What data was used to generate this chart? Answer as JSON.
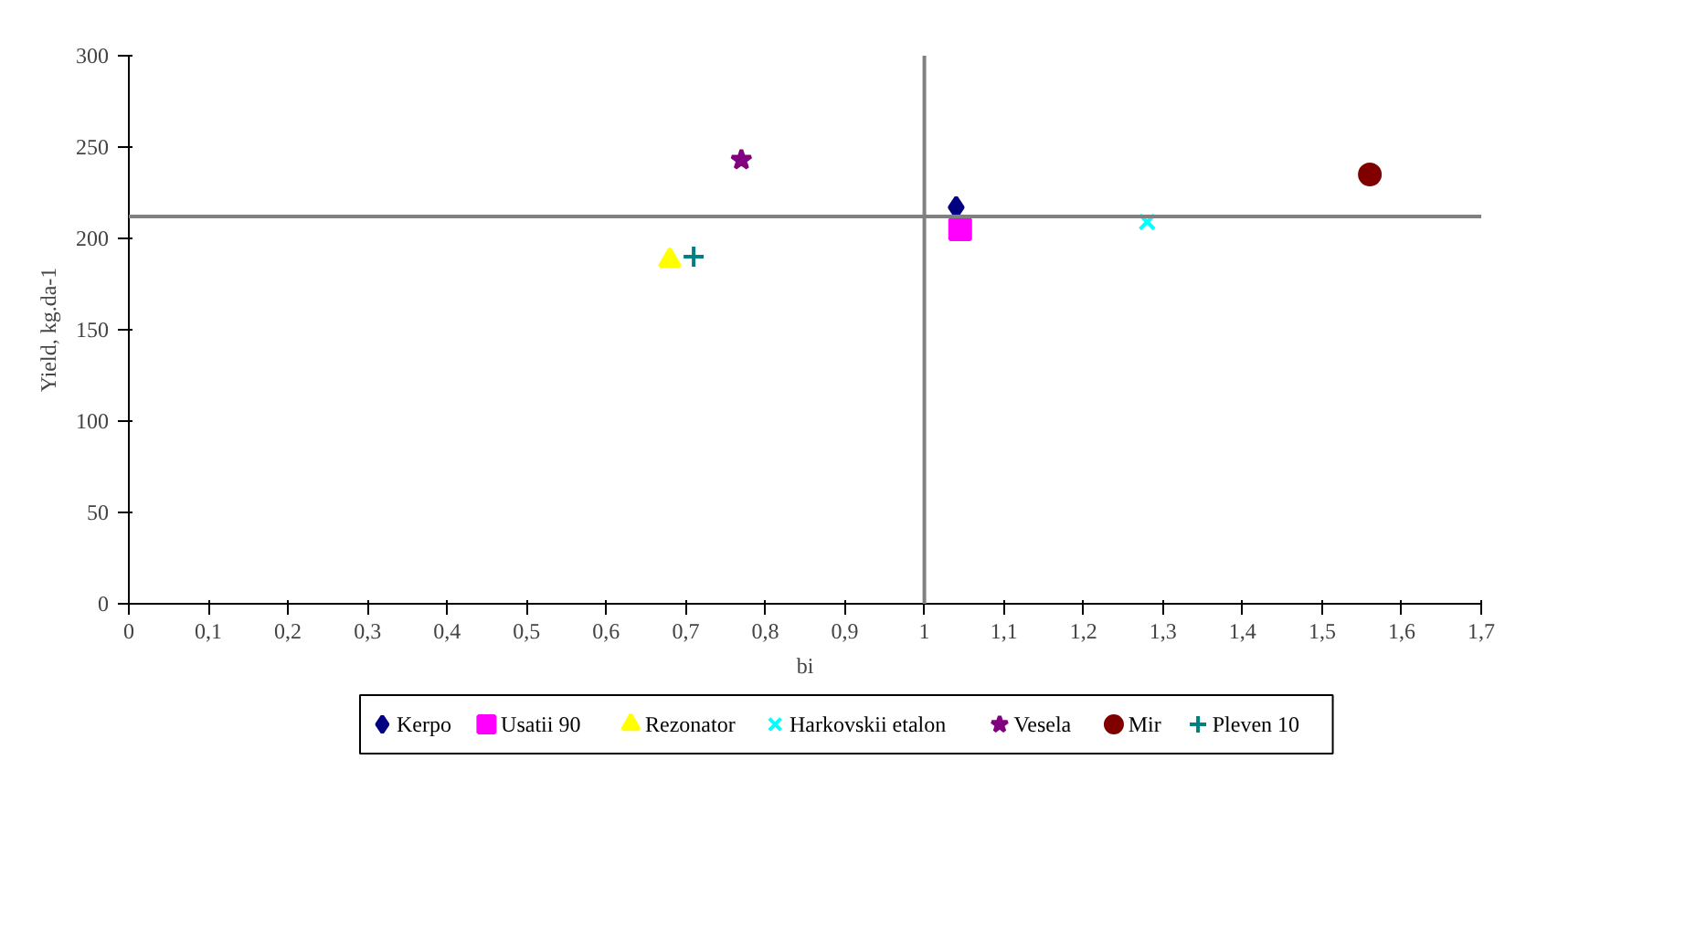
{
  "chart_data": {
    "type": "scatter",
    "xlabel": "bi",
    "ylabel": "Yield, kg.da-1",
    "xlim": [
      0,
      1.7
    ],
    "ylim": [
      0,
      300
    ],
    "xticks": [
      0,
      {
        "value": 0.1,
        "label": "0,1"
      },
      {
        "value": 0.2,
        "label": "0,2"
      },
      {
        "value": 0.3,
        "label": "0,3"
      },
      {
        "value": 0.4,
        "label": "0,4"
      },
      {
        "value": 0.5,
        "label": "0,5"
      },
      {
        "value": 0.6,
        "label": "0,6"
      },
      {
        "value": 0.7,
        "label": "0,7"
      },
      {
        "value": 0.8,
        "label": "0,8"
      },
      {
        "value": 0.9,
        "label": "0,9"
      },
      1,
      {
        "value": 1.1,
        "label": "1,1"
      },
      {
        "value": 1.2,
        "label": "1,2"
      },
      {
        "value": 1.3,
        "label": "1,3"
      },
      {
        "value": 1.4,
        "label": "1,4"
      },
      {
        "value": 1.5,
        "label": "1,5"
      },
      {
        "value": 1.6,
        "label": "1,6"
      },
      {
        "value": 1.7,
        "label": "1,7"
      }
    ],
    "yticks": [
      0,
      50,
      100,
      150,
      200,
      250,
      300
    ],
    "grid": false,
    "legend": "bottom",
    "ref_lines": [
      {
        "axis": "x",
        "value": 1,
        "color": "#808080"
      },
      {
        "axis": "y",
        "value": 212,
        "color": "#808080"
      }
    ],
    "series": [
      {
        "name": "Kerpo",
        "color": "#000080",
        "marker": "diamond",
        "x": [
          1.04
        ],
        "values": [
          217
        ]
      },
      {
        "name": "Usatii 90",
        "color": "#ff00ff",
        "marker": "square",
        "x": [
          1.045
        ],
        "values": [
          205
        ]
      },
      {
        "name": "Rezonator",
        "color": "#ffff00",
        "marker": "triangle",
        "x": [
          0.68
        ],
        "values": [
          188
        ]
      },
      {
        "name": "Harkovskii etalon",
        "color": "#00ffff",
        "marker": "x",
        "x": [
          1.28
        ],
        "values": [
          209
        ]
      },
      {
        "name": "Vesela",
        "color": "#800080",
        "marker": "star",
        "x": [
          0.77
        ],
        "values": [
          243
        ]
      },
      {
        "name": "Mir",
        "color": "#800000",
        "marker": "circle",
        "x": [
          1.56
        ],
        "values": [
          235
        ]
      },
      {
        "name": "Pleven 10",
        "color": "#008080",
        "marker": "cross",
        "x": [
          0.71
        ],
        "values": [
          190
        ]
      }
    ]
  }
}
